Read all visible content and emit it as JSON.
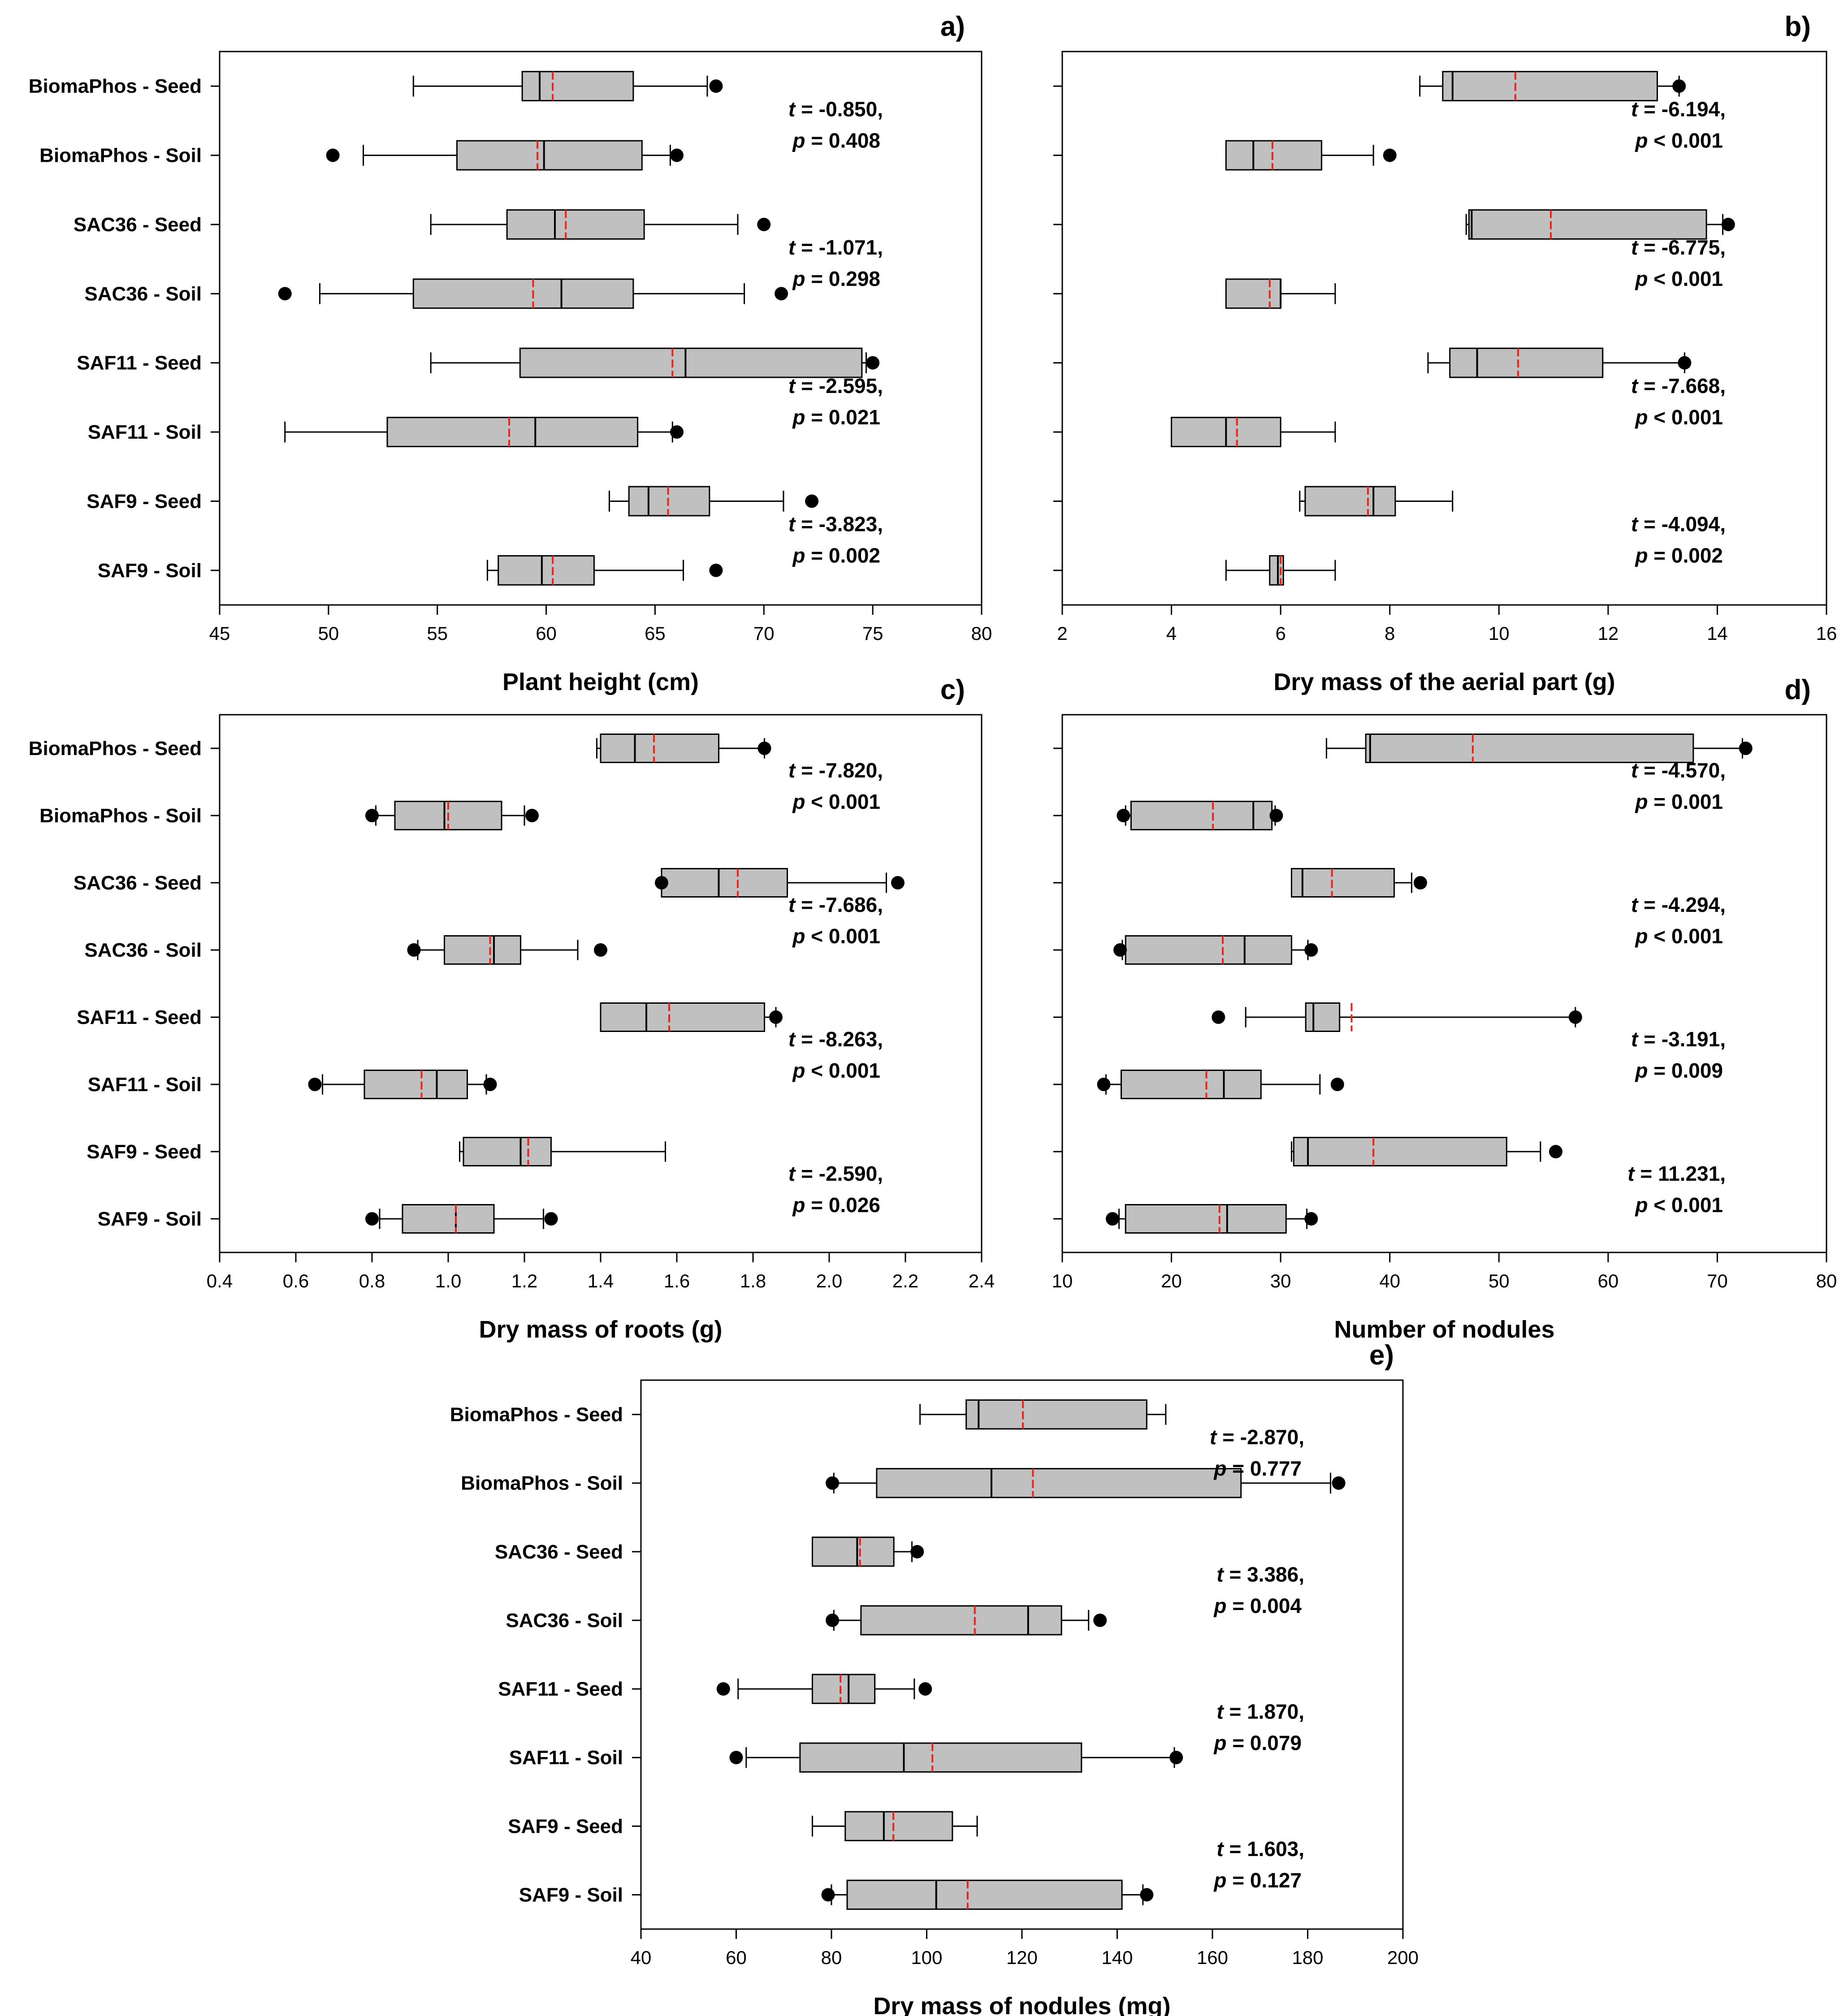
{
  "figure": {
    "background": "#ffffff",
    "box_fill": "#c0c0c0",
    "mean_color": "#e8251d",
    "line_color": "#000000"
  },
  "chart_data": [
    {
      "type": "box",
      "panel": "a)",
      "xlabel": "Plant height (cm)",
      "xlim": [
        45,
        80
      ],
      "xticks": [
        45,
        50,
        55,
        60,
        65,
        70,
        75,
        80
      ],
      "categories": [
        "BiomaPhos - Seed",
        "BiomaPhos - Soil",
        "SAC36 - Seed",
        "SAC36 - Soil",
        "SAF11 - Seed",
        "SAF11 - Soil",
        "SAF9 - Seed",
        "SAF9 - Soil"
      ],
      "boxes": [
        {
          "wlo": 53.9,
          "q1": 58.9,
          "median": 59.7,
          "mean": 60.3,
          "q3": 64.0,
          "whi": 67.4,
          "out": [
            67.8
          ]
        },
        {
          "wlo": 51.6,
          "q1": 55.9,
          "median": 59.9,
          "mean": 59.6,
          "q3": 64.4,
          "whi": 65.7,
          "out": [
            50.2,
            66.0
          ]
        },
        {
          "wlo": 54.7,
          "q1": 58.2,
          "median": 60.4,
          "mean": 60.9,
          "q3": 64.5,
          "whi": 68.8,
          "out": [
            70.0
          ]
        },
        {
          "wlo": 49.6,
          "q1": 53.9,
          "median": 60.7,
          "mean": 59.4,
          "q3": 64.0,
          "whi": 69.1,
          "out": [
            48.0,
            70.8
          ]
        },
        {
          "wlo": 54.7,
          "q1": 58.8,
          "median": 66.4,
          "mean": 65.8,
          "q3": 74.5,
          "whi": 74.7,
          "out": [
            75.0
          ]
        },
        {
          "wlo": 48.0,
          "q1": 52.7,
          "median": 59.5,
          "mean": 58.3,
          "q3": 64.2,
          "whi": 65.8,
          "out": [
            66.0
          ]
        },
        {
          "wlo": 62.9,
          "q1": 63.8,
          "median": 64.7,
          "mean": 65.6,
          "q3": 67.5,
          "whi": 70.9,
          "out": [
            72.2
          ]
        },
        {
          "wlo": 57.3,
          "q1": 57.8,
          "median": 59.8,
          "mean": 60.3,
          "q3": 62.2,
          "whi": 66.3,
          "out": [
            67.8
          ]
        }
      ],
      "stats": [
        {
          "t_label": "t",
          "t_value": "= -0.850,",
          "p_label": "p",
          "p_value": "= 0.408"
        },
        {
          "t_label": "t",
          "t_value": "= -1.071,",
          "p_label": "p",
          "p_value": "= 0.298"
        },
        {
          "t_label": "t",
          "t_value": "= -2.595,",
          "p_label": "p",
          "p_value": "= 0.021"
        },
        {
          "t_label": "t",
          "t_value": "= -3.823,",
          "p_label": "p",
          "p_value": "= 0.002"
        }
      ]
    },
    {
      "type": "box",
      "panel": "b)",
      "xlabel": "Dry mass of the aerial part (g)",
      "xlim": [
        2,
        16
      ],
      "xticks": [
        2,
        4,
        6,
        8,
        10,
        12,
        14,
        16
      ],
      "categories": [
        "",
        "",
        "",
        "",
        "",
        "",
        "",
        ""
      ],
      "boxes": [
        {
          "wlo": 8.55,
          "q1": 8.97,
          "median": 9.15,
          "mean": 10.3,
          "q3": 12.9,
          "whi": 13.3,
          "out": [
            13.3
          ]
        },
        {
          "wlo": 5.0,
          "q1": 5.0,
          "median": 5.5,
          "mean": 5.85,
          "q3": 6.75,
          "whi": 7.7,
          "out": [
            8.0
          ]
        },
        {
          "wlo": 9.4,
          "q1": 9.45,
          "median": 9.5,
          "mean": 10.95,
          "q3": 13.8,
          "whi": 14.1,
          "out": [
            14.2
          ]
        },
        {
          "wlo": 5.0,
          "q1": 5.0,
          "median": 6.0,
          "mean": 5.8,
          "q3": 6.0,
          "whi": 7.0,
          "out": []
        },
        {
          "wlo": 8.7,
          "q1": 9.1,
          "median": 9.6,
          "mean": 10.35,
          "q3": 11.9,
          "whi": 13.4,
          "out": [
            13.4
          ]
        },
        {
          "wlo": 4.0,
          "q1": 4.0,
          "median": 5.0,
          "mean": 5.2,
          "q3": 6.0,
          "whi": 7.0,
          "out": []
        },
        {
          "wlo": 6.35,
          "q1": 6.45,
          "median": 7.7,
          "mean": 7.6,
          "q3": 8.1,
          "whi": 9.15,
          "out": []
        },
        {
          "wlo": 5.0,
          "q1": 5.8,
          "median": 5.95,
          "mean": 6.0,
          "q3": 6.05,
          "whi": 7.0,
          "out": []
        }
      ],
      "stats": [
        {
          "t_label": "t",
          "t_value": "= -6.194,",
          "p_label": "p",
          "p_value": "< 0.001"
        },
        {
          "t_label": "t",
          "t_value": "= -6.775,",
          "p_label": "p",
          "p_value": "< 0.001"
        },
        {
          "t_label": "t",
          "t_value": "= -7.668,",
          "p_label": "p",
          "p_value": "< 0.001"
        },
        {
          "t_label": "t",
          "t_value": "= -4.094,",
          "p_label": "p",
          "p_value": "= 0.002"
        }
      ]
    },
    {
      "type": "box",
      "panel": "c)",
      "xlabel": "Dry mass of roots (g)",
      "xlim": [
        0.4,
        2.4
      ],
      "xticks": [
        "0.4",
        "0.6",
        "0.8",
        "1.0",
        "1.2",
        "1.4",
        "1.6",
        "1.8",
        "2.0",
        "2.2",
        "2.4"
      ],
      "categories": [
        "BiomaPhos - Seed",
        "BiomaPhos - Soil",
        "SAC36 - Seed",
        "SAC36 - Soil",
        "SAF11 - Seed",
        "SAF11 - Soil",
        "SAF9 - Seed",
        "SAF9 - Soil"
      ],
      "boxes": [
        {
          "wlo": 1.39,
          "q1": 1.4,
          "median": 1.49,
          "mean": 1.54,
          "q3": 1.71,
          "whi": 1.83,
          "out": [
            1.83
          ]
        },
        {
          "wlo": 0.81,
          "q1": 0.86,
          "median": 0.99,
          "mean": 1.0,
          "q3": 1.14,
          "whi": 1.2,
          "out": [
            0.8,
            1.22
          ]
        },
        {
          "wlo": 1.56,
          "q1": 1.56,
          "median": 1.71,
          "mean": 1.76,
          "q3": 1.89,
          "whi": 2.15,
          "out": [
            1.56,
            2.18
          ]
        },
        {
          "wlo": 0.92,
          "q1": 0.99,
          "median": 1.12,
          "mean": 1.11,
          "q3": 1.19,
          "whi": 1.34,
          "out": [
            0.91,
            1.4
          ]
        },
        {
          "wlo": 1.4,
          "q1": 1.4,
          "median": 1.52,
          "mean": 1.58,
          "q3": 1.83,
          "whi": 1.86,
          "out": [
            1.86
          ]
        },
        {
          "wlo": 0.67,
          "q1": 0.78,
          "median": 0.97,
          "mean": 0.93,
          "q3": 1.05,
          "whi": 1.1,
          "out": [
            0.65,
            1.11
          ]
        },
        {
          "wlo": 1.03,
          "q1": 1.04,
          "median": 1.19,
          "mean": 1.21,
          "q3": 1.27,
          "whi": 1.57,
          "out": []
        },
        {
          "wlo": 0.82,
          "q1": 0.88,
          "median": 1.02,
          "mean": 1.02,
          "q3": 1.12,
          "whi": 1.25,
          "out": [
            0.8,
            1.27
          ]
        }
      ],
      "stats": [
        {
          "t_label": "t",
          "t_value": "= -7.820,",
          "p_label": "p",
          "p_value": "< 0.001"
        },
        {
          "t_label": "t",
          "t_value": "= -7.686,",
          "p_label": "p",
          "p_value": "< 0.001"
        },
        {
          "t_label": "t",
          "t_value": "= -8.263,",
          "p_label": "p",
          "p_value": "< 0.001"
        },
        {
          "t_label": "t",
          "t_value": "= -2.590,",
          "p_label": "p",
          "p_value": "= 0.026"
        }
      ]
    },
    {
      "type": "box",
      "panel": "d)",
      "xlabel": "Number of nodules",
      "xlim": [
        10,
        80
      ],
      "xticks": [
        10,
        20,
        30,
        40,
        50,
        60,
        70,
        80
      ],
      "categories": [
        "",
        "",
        "",
        "",
        "",
        "",
        "",
        ""
      ],
      "boxes": [
        {
          "wlo": 34.2,
          "q1": 37.8,
          "median": 38.2,
          "mean": 47.6,
          "q3": 67.8,
          "whi": 72.3,
          "out": [
            72.6
          ]
        },
        {
          "wlo": 15.8,
          "q1": 16.3,
          "median": 27.5,
          "mean": 23.8,
          "q3": 29.2,
          "whi": 29.5,
          "out": [
            15.6,
            29.6
          ]
        },
        {
          "wlo": 31.0,
          "q1": 31.0,
          "median": 32.0,
          "mean": 34.7,
          "q3": 40.4,
          "whi": 42.0,
          "out": [
            42.8
          ]
        },
        {
          "wlo": 15.5,
          "q1": 15.8,
          "median": 26.7,
          "mean": 24.7,
          "q3": 31.0,
          "whi": 32.5,
          "out": [
            15.3,
            32.8
          ]
        },
        {
          "wlo": 26.8,
          "q1": 32.3,
          "median": 33.0,
          "mean": 36.5,
          "q3": 35.4,
          "whi": 57.0,
          "out": [
            24.3,
            57.0
          ]
        },
        {
          "wlo": 14.0,
          "q1": 15.4,
          "median": 24.8,
          "mean": 23.2,
          "q3": 28.2,
          "whi": 33.6,
          "out": [
            13.8,
            35.2
          ]
        },
        {
          "wlo": 31.0,
          "q1": 31.2,
          "median": 32.5,
          "mean": 38.5,
          "q3": 50.7,
          "whi": 53.8,
          "out": [
            55.2
          ]
        },
        {
          "wlo": 15.2,
          "q1": 15.8,
          "median": 25.1,
          "mean": 24.4,
          "q3": 30.5,
          "whi": 32.4,
          "out": [
            14.6,
            32.8
          ]
        }
      ],
      "stats": [
        {
          "t_label": "t",
          "t_value": "= -4.570,",
          "p_label": "p",
          "p_value": "= 0.001"
        },
        {
          "t_label": "t",
          "t_value": "= -4.294,",
          "p_label": "p",
          "p_value": "< 0.001"
        },
        {
          "t_label": "t",
          "t_value": "= -3.191,",
          "p_label": "p",
          "p_value": "= 0.009"
        },
        {
          "t_label": "t",
          "t_value": "= 11.231,",
          "p_label": "p",
          "p_value": "< 0.001"
        }
      ]
    },
    {
      "type": "box",
      "panel": "e)",
      "xlabel": "Dry mass of nodules (mg)",
      "xlim": [
        40,
        200
      ],
      "xticks": [
        40,
        60,
        80,
        100,
        120,
        140,
        160,
        180,
        200
      ],
      "categories": [
        "BiomaPhos - Seed",
        "BiomaPhos - Soil",
        "SAC36 - Seed",
        "SAC36 - Soil",
        "SAF11 - Seed",
        "SAF11 - Soil",
        "SAF9 - Seed",
        "SAF9 - Soil"
      ],
      "boxes": [
        {
          "wlo": 98.6,
          "q1": 108.3,
          "median": 110.9,
          "mean": 120.2,
          "q3": 146.2,
          "whi": 150.2,
          "out": []
        },
        {
          "wlo": 80.5,
          "q1": 89.5,
          "median": 113.6,
          "mean": 122.3,
          "q3": 166.0,
          "whi": 184.8,
          "out": [
            80.2,
            186.5
          ]
        },
        {
          "wlo": 76.0,
          "q1": 76.0,
          "median": 85.4,
          "mean": 86.0,
          "q3": 93.1,
          "whi": 96.9,
          "out": [
            98.0
          ]
        },
        {
          "wlo": 80.5,
          "q1": 86.2,
          "median": 121.3,
          "mean": 110.1,
          "q3": 128.3,
          "whi": 134.0,
          "out": [
            80.2,
            136.4
          ]
        },
        {
          "wlo": 60.4,
          "q1": 76.0,
          "median": 83.6,
          "mean": 81.9,
          "q3": 89.1,
          "whi": 97.4,
          "out": [
            57.3,
            99.7
          ]
        },
        {
          "wlo": 62.1,
          "q1": 73.4,
          "median": 95.2,
          "mean": 101.2,
          "q3": 132.5,
          "whi": 152.0,
          "out": [
            60.0,
            152.4
          ]
        },
        {
          "wlo": 76.0,
          "q1": 82.9,
          "median": 91.0,
          "mean": 93.0,
          "q3": 105.4,
          "whi": 110.6,
          "out": []
        },
        {
          "wlo": 80.0,
          "q1": 83.3,
          "median": 102.0,
          "mean": 108.6,
          "q3": 141.0,
          "whi": 145.4,
          "out": [
            79.3,
            146.2
          ]
        }
      ],
      "stats": [
        {
          "t_label": "t",
          "t_value": "= -2.870,",
          "p_label": "p",
          "p_value": "= 0.777"
        },
        {
          "t_label": "t",
          "t_value": "= 3.386,",
          "p_label": "p",
          "p_value": "= 0.004"
        },
        {
          "t_label": "t",
          "t_value": "= 1.870,",
          "p_label": "p",
          "p_value": "= 0.079"
        },
        {
          "t_label": "t",
          "t_value": "= 1.603,",
          "p_label": "p",
          "p_value": "= 0.127"
        }
      ]
    }
  ]
}
